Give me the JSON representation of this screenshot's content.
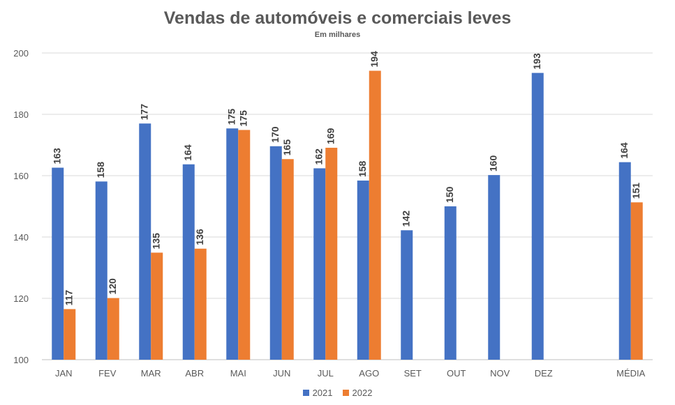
{
  "chart_data": {
    "type": "bar",
    "title": "Vendas de automóveis e comerciais leves",
    "subtitle": "Em milhares",
    "categories": [
      "JAN",
      "FEV",
      "MAR",
      "ABR",
      "MAI",
      "JUN",
      "JUL",
      "AGO",
      "SET",
      "OUT",
      "NOV",
      "DEZ",
      "",
      "MÉDIA"
    ],
    "series": [
      {
        "name": "2021",
        "color": "#4472C4",
        "values": [
          163,
          158,
          177,
          164,
          175,
          170,
          162,
          158,
          142,
          150,
          160,
          193,
          null,
          164
        ],
        "exact": [
          162.6,
          158.1,
          177.0,
          163.7,
          175.4,
          169.6,
          162.4,
          158.4,
          142.2,
          150.0,
          160.2,
          193.5,
          null,
          164.4
        ]
      },
      {
        "name": "2022",
        "color": "#ED7D31",
        "values": [
          117,
          120,
          135,
          136,
          175,
          165,
          169,
          194,
          null,
          null,
          null,
          null,
          null,
          151
        ],
        "exact": [
          116.5,
          120.1,
          134.9,
          136.2,
          174.9,
          165.4,
          169.1,
          194.2,
          null,
          null,
          null,
          null,
          null,
          151.3
        ]
      }
    ],
    "ylim": [
      100,
      200
    ],
    "yticks": [
      100,
      120,
      140,
      160,
      180,
      200
    ],
    "grid": true,
    "legend": "bottom"
  }
}
